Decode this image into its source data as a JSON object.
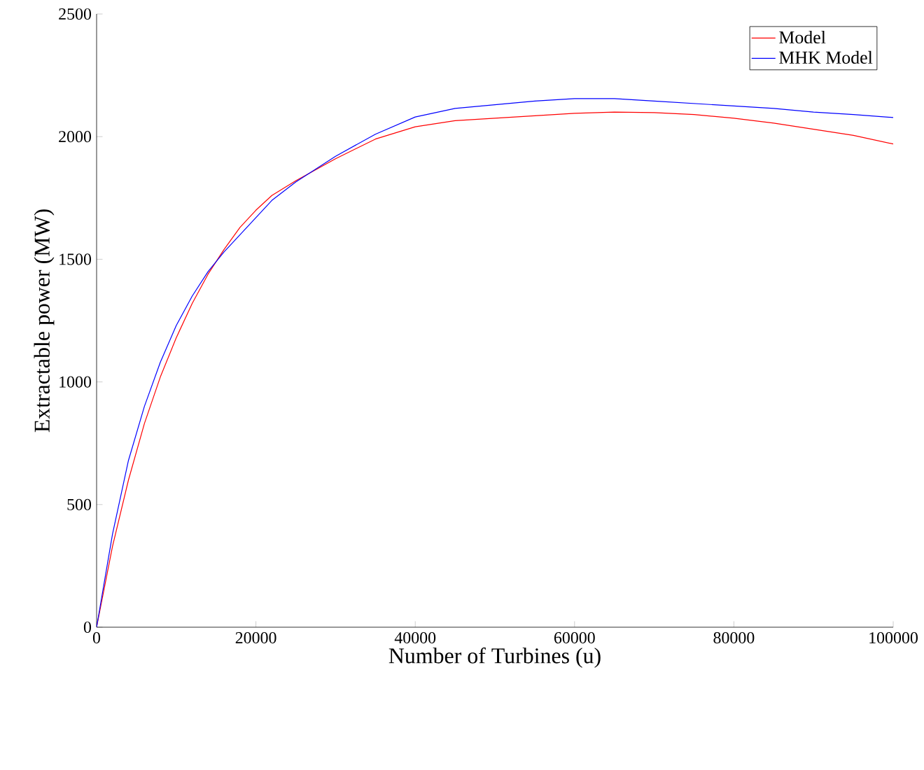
{
  "chart_data": {
    "type": "line",
    "xlabel": "Number of Turbines (u)",
    "ylabel": "Extractable power (MW)",
    "xlim": [
      0,
      100000
    ],
    "ylim": [
      0,
      2500
    ],
    "xticks": [
      0,
      20000,
      40000,
      60000,
      80000,
      100000
    ],
    "yticks": [
      0,
      500,
      1000,
      1500,
      2000,
      2500
    ],
    "legend": "top right",
    "grid": false,
    "series": [
      {
        "name": "Model",
        "color": "#ff0000",
        "x": [
          0,
          2000,
          4000,
          6000,
          8000,
          10000,
          12000,
          14000,
          16000,
          18000,
          20000,
          22000,
          25000,
          30000,
          35000,
          40000,
          45000,
          50000,
          55000,
          60000,
          65000,
          70000,
          75000,
          80000,
          85000,
          90000,
          95000,
          100000
        ],
        "values": [
          0,
          330,
          600,
          830,
          1020,
          1180,
          1320,
          1440,
          1540,
          1630,
          1700,
          1760,
          1820,
          1910,
          1990,
          2040,
          2065,
          2075,
          2085,
          2095,
          2100,
          2098,
          2090,
          2075,
          2055,
          2030,
          2005,
          1970
        ]
      },
      {
        "name": "MHK Model",
        "color": "#0000ff",
        "x": [
          0,
          2000,
          4000,
          6000,
          8000,
          10000,
          12000,
          14000,
          16000,
          18000,
          20000,
          22000,
          25000,
          30000,
          35000,
          40000,
          45000,
          50000,
          55000,
          60000,
          65000,
          70000,
          75000,
          80000,
          85000,
          90000,
          95000,
          100000
        ],
        "values": [
          0,
          380,
          680,
          900,
          1080,
          1230,
          1350,
          1450,
          1530,
          1600,
          1670,
          1740,
          1815,
          1920,
          2010,
          2080,
          2115,
          2130,
          2145,
          2155,
          2155,
          2145,
          2135,
          2125,
          2115,
          2100,
          2090,
          2078
        ]
      }
    ]
  }
}
